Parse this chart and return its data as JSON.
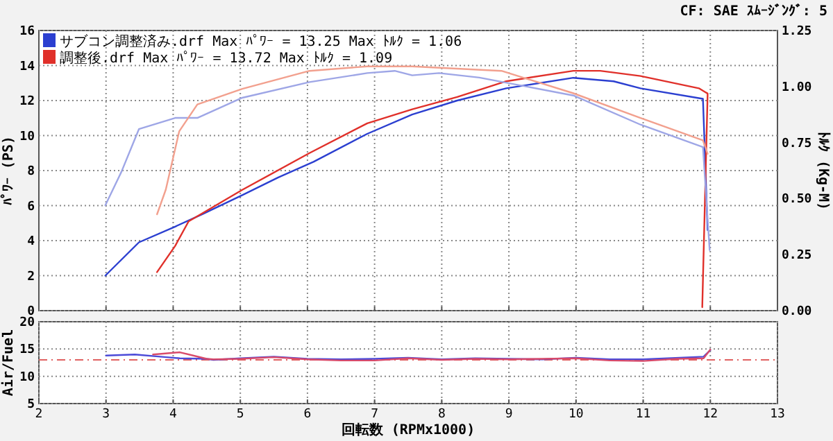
{
  "chart_data": [
    {
      "type": "line",
      "ylabel": "ﾊﾟﾜｰ (PS)",
      "y2label": "ﾄﾙｸ (Kg-M)",
      "annotations": [
        "CF: SAE  ｽﾑｰｼﾞﾝｸﾞ: 5"
      ],
      "xlim": [
        2,
        13
      ],
      "xticks": [
        3,
        4,
        5,
        6,
        7,
        8,
        9,
        10,
        11,
        12
      ],
      "ylim": [
        0,
        16
      ],
      "yticks": [
        0,
        2,
        4,
        6,
        8,
        10,
        12,
        14,
        16
      ],
      "y2lim": [
        0,
        1.25
      ],
      "y2ticks": [
        {
          "value": 0,
          "label": "0.00"
        },
        {
          "value": 0.25,
          "label": "0.25"
        },
        {
          "value": 0.5,
          "label": "0.50"
        },
        {
          "value": 0.75,
          "label": "0.75"
        },
        {
          "value": 1,
          "label": "1.00"
        },
        {
          "value": 1.25,
          "label": "1.25"
        }
      ],
      "tick_labels": "y",
      "grid": true,
      "legend": "top left",
      "series": [
        {
          "name": "サブコン調整済み.drf Max ﾊﾟﾜｰ = 13.25  Max ﾄﾙｸ = 1.06",
          "color": "#2b3fd0",
          "x": [
            2.99,
            3.49,
            4.03,
            4.43,
            5.03,
            5.56,
            6.09,
            6.89,
            7.56,
            8.23,
            8.96,
            9.96,
            10.56,
            10.96,
            11.89,
            11.96
          ],
          "values": [
            2.0,
            3.9,
            4.8,
            5.5,
            6.6,
            7.6,
            8.5,
            10.1,
            11.2,
            12.0,
            12.7,
            13.3,
            13.1,
            12.7,
            12.1,
            4.6
          ]
        },
        {
          "name": "調整後.drf Max ﾊﾟﾜｰ = 13.72   Max ﾄﾙｸ = 1.09",
          "color": "#e0302a",
          "x": [
            3.76,
            4.03,
            4.23,
            5.03,
            6.03,
            6.89,
            7.56,
            8.23,
            8.96,
            9.96,
            10.36,
            10.96,
            11.83,
            11.96,
            11.88
          ],
          "values": [
            2.2,
            3.7,
            5.1,
            6.9,
            9.0,
            10.7,
            11.5,
            12.2,
            13.1,
            13.7,
            13.7,
            13.4,
            12.7,
            12.4,
            0.2
          ]
        },
        {
          "axis": "y2",
          "color": "#9ea6e6",
          "x": [
            2.99,
            3.23,
            3.49,
            4.03,
            4.36,
            5.03,
            6.03,
            6.89,
            7.3,
            7.56,
            7.96,
            8.56,
            9.96,
            10.96,
            11.89,
            11.99
          ],
          "values": [
            0.47,
            0.62,
            0.81,
            0.86,
            0.86,
            0.95,
            1.02,
            1.06,
            1.07,
            1.05,
            1.06,
            1.04,
            0.96,
            0.83,
            0.73,
            0.27
          ]
        },
        {
          "axis": "y2",
          "color": "#f2a08e",
          "x": [
            3.76,
            3.89,
            4.09,
            4.36,
            5.03,
            6.03,
            6.89,
            7.56,
            8.89,
            9.96,
            10.96,
            11.89,
            11.96
          ],
          "values": [
            0.43,
            0.54,
            0.8,
            0.92,
            0.99,
            1.07,
            1.09,
            1.09,
            1.07,
            0.97,
            0.86,
            0.76,
            0.7
          ]
        }
      ]
    },
    {
      "type": "line",
      "xlabel": "回転数 (RPMx1000)",
      "ylabel": "Air/Fuel",
      "xlim": [
        2,
        13
      ],
      "xticks": [
        2,
        3,
        4,
        5,
        6,
        7,
        8,
        9,
        10,
        11,
        12,
        13
      ],
      "ylim": [
        5,
        20
      ],
      "yticks": [
        5,
        10,
        15,
        20
      ],
      "grid": true,
      "ref_lines": [
        {
          "axis": "y",
          "value": 13,
          "color": "#e06060",
          "line_style": "dashed"
        }
      ],
      "series": [
        {
          "color": "#4b4ad8",
          "x": [
            3.0,
            3.43,
            3.9,
            4.1,
            4.5,
            4.6,
            5.0,
            5.5,
            6.0,
            6.5,
            7.0,
            7.5,
            8.0,
            8.5,
            9.0,
            9.5,
            10.0,
            10.5,
            11.0,
            11.9,
            12.0
          ],
          "values": [
            13.8,
            14.0,
            13.5,
            13.3,
            13.2,
            13.0,
            13.3,
            13.6,
            13.2,
            13.1,
            13.2,
            13.4,
            13.1,
            13.3,
            13.2,
            13.1,
            13.4,
            13.1,
            13.1,
            13.6,
            14.8
          ]
        },
        {
          "color": "#d84a6a",
          "x": [
            3.7,
            4.1,
            4.5,
            4.6,
            5.0,
            5.5,
            6.0,
            6.5,
            7.0,
            7.5,
            8.0,
            8.5,
            9.0,
            9.5,
            10.0,
            10.5,
            11.0,
            11.5,
            11.9,
            12.0
          ],
          "values": [
            14.0,
            14.4,
            13.2,
            13.1,
            13.2,
            13.5,
            13.1,
            12.9,
            12.9,
            13.3,
            13.0,
            13.2,
            13.1,
            13.2,
            13.3,
            12.9,
            12.8,
            13.2,
            13.3,
            14.9
          ]
        }
      ]
    }
  ]
}
